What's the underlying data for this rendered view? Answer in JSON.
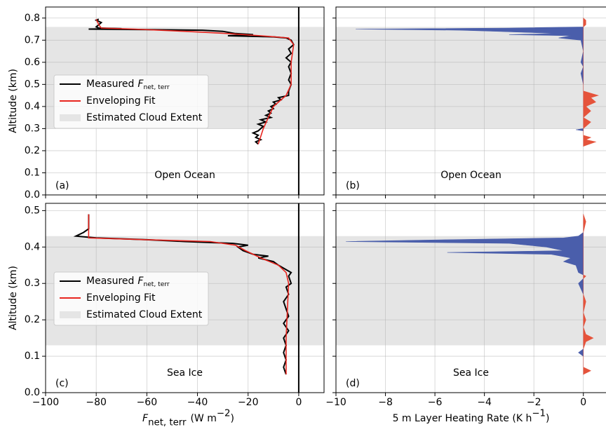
{
  "chart_data": [
    {
      "type": "line",
      "xlim": [
        -100,
        10
      ],
      "ylim": [
        0,
        0.85
      ],
      "xticks": [
        -100,
        -80,
        -60,
        -40,
        -20,
        0
      ],
      "show_xticklabels": false,
      "yticks": [
        {
          "value": 0,
          "label": "0.0"
        },
        0.1,
        0.2,
        0.3,
        0.4,
        0.5,
        0.6,
        0.7,
        0.8
      ],
      "show_yticklabels": true,
      "grid": true,
      "zero_line": true,
      "ylabel": "Altitude (km)",
      "panel_label": "(a)",
      "location_label": "Open Ocean",
      "cloud_extent": [
        0.3,
        0.76
      ],
      "cloud_color": "#e5e5e5",
      "cloud_label": "Estimated Cloud Extent",
      "legend": "center left",
      "series": [
        {
          "name": {
            "prefix": "Measured",
            "symbol": "F",
            "subscript": "net, terr"
          },
          "color": "#000000",
          "y": [
            0.23,
            0.24,
            0.25,
            0.26,
            0.27,
            0.28,
            0.29,
            0.3,
            0.31,
            0.32,
            0.33,
            0.34,
            0.35,
            0.36,
            0.37,
            0.38,
            0.39,
            0.4,
            0.41,
            0.42,
            0.43,
            0.44,
            0.45,
            0.47,
            0.5,
            0.52,
            0.55,
            0.58,
            0.6,
            0.62,
            0.64,
            0.66,
            0.68,
            0.7,
            0.71,
            0.715,
            0.72,
            0.725,
            0.73,
            0.74,
            0.745,
            0.748,
            0.75,
            0.752,
            0.755,
            0.76,
            0.77,
            0.78,
            0.79,
            0.795
          ],
          "x": [
            -16,
            -17,
            -15,
            -17,
            -16,
            -18,
            -16,
            -15,
            -14,
            -16,
            -13,
            -15,
            -11,
            -13,
            -11,
            -12,
            -10,
            -11,
            -9,
            -10,
            -7,
            -8,
            -4,
            -4,
            -3,
            -4,
            -3,
            -4,
            -3,
            -5,
            -3,
            -4,
            -2,
            -3,
            -5,
            -10,
            -28,
            -18,
            -25,
            -30,
            -38,
            -60,
            -83,
            -70,
            -79,
            -80,
            -79,
            -78,
            -80,
            -79
          ]
        },
        {
          "name": "Enveloping Fit",
          "color": "#e8251f",
          "y": [
            0.23,
            0.3,
            0.35,
            0.4,
            0.45,
            0.5,
            0.6,
            0.68,
            0.71,
            0.72,
            0.73,
            0.74,
            0.75,
            0.755,
            0.77,
            0.795
          ],
          "x": [
            -16,
            -14,
            -12,
            -10,
            -5,
            -3,
            -3,
            -2,
            -4,
            -15,
            -28,
            -45,
            -65,
            -78,
            -79,
            -80
          ]
        }
      ]
    },
    {
      "type": "area",
      "xlim": [
        -10,
        1
      ],
      "ylim": [
        0,
        0.85
      ],
      "xticks": [
        -10,
        -8,
        -6,
        -4,
        -2,
        0
      ],
      "show_xticklabels": false,
      "yticks": [
        0,
        0.1,
        0.2,
        0.3,
        0.4,
        0.5,
        0.6,
        0.7,
        0.8
      ],
      "show_yticklabels": false,
      "grid": true,
      "panel_label": "(b)",
      "location_label": "Open Ocean",
      "cloud_extent": [
        0.3,
        0.76
      ],
      "cloud_color": "#e5e5e5",
      "negative_color": "#4a5eab",
      "positive_color": "#e5533b",
      "y": [
        0.22,
        0.24,
        0.25,
        0.26,
        0.27,
        0.29,
        0.295,
        0.3,
        0.33,
        0.35,
        0.38,
        0.4,
        0.42,
        0.44,
        0.45,
        0.47,
        0.5,
        0.55,
        0.58,
        0.6,
        0.65,
        0.7,
        0.71,
        0.72,
        0.725,
        0.73,
        0.74,
        0.745,
        0.75,
        0.755,
        0.76,
        0.77,
        0.79,
        0.8
      ],
      "x": [
        0,
        0.5,
        0.1,
        0.3,
        0,
        0,
        -0.3,
        0,
        0.3,
        0,
        0.3,
        0.1,
        0.5,
        0.3,
        0.6,
        0,
        0,
        -0.1,
        0,
        -0.1,
        0,
        -0.1,
        -1,
        -0.5,
        -3,
        -1,
        -3.5,
        -5,
        -9.2,
        -3,
        0,
        0.1,
        0.1,
        0
      ]
    },
    {
      "type": "line",
      "xlim": [
        -100,
        10
      ],
      "ylim": [
        0,
        0.52
      ],
      "xticks": [
        {
          "value": -100,
          "label": "−100"
        },
        {
          "value": -80,
          "label": "−80"
        },
        {
          "value": -60,
          "label": "−60"
        },
        {
          "value": -40,
          "label": "−40"
        },
        {
          "value": -20,
          "label": "−20"
        },
        0
      ],
      "show_xticklabels": true,
      "yticks": [
        {
          "value": 0,
          "label": "0.0"
        },
        0.1,
        0.2,
        0.3,
        0.4,
        0.5
      ],
      "show_yticklabels": true,
      "grid": true,
      "zero_line": true,
      "ylabel": "Altitude (km)",
      "xlabel": {
        "symbol": "F",
        "subscript": "net, terr",
        "unit": "(W m",
        "exponent": "−2",
        "close": ")"
      },
      "panel_label": "(c)",
      "location_label": "Sea Ice",
      "cloud_extent": [
        0.13,
        0.43
      ],
      "cloud_color": "#e5e5e5",
      "cloud_label": "Estimated Cloud Extent",
      "legend": "center left",
      "series": [
        {
          "name": {
            "prefix": "Measured",
            "symbol": "F",
            "subscript": "net, terr"
          },
          "color": "#000000",
          "y": [
            0.05,
            0.07,
            0.09,
            0.11,
            0.13,
            0.15,
            0.17,
            0.19,
            0.21,
            0.23,
            0.25,
            0.27,
            0.29,
            0.3,
            0.32,
            0.33,
            0.35,
            0.36,
            0.37,
            0.375,
            0.38,
            0.39,
            0.4,
            0.405,
            0.41,
            0.415,
            0.42,
            0.425,
            0.43,
            0.44,
            0.45,
            0.47,
            0.49
          ],
          "x": [
            -5,
            -6,
            -5,
            -6,
            -5,
            -6,
            -4,
            -6,
            -4,
            -5,
            -6,
            -4,
            -5,
            -3,
            -4,
            -3,
            -8,
            -10,
            -16,
            -12,
            -18,
            -22,
            -24,
            -20,
            -26,
            -45,
            -60,
            -80,
            -88,
            -85,
            -83,
            -83,
            -83
          ]
        },
        {
          "name": "Enveloping Fit",
          "color": "#e8251f",
          "y": [
            0.05,
            0.15,
            0.3,
            0.33,
            0.35,
            0.37,
            0.39,
            0.405,
            0.415,
            0.42,
            0.425,
            0.49
          ],
          "x": [
            -5,
            -5,
            -4,
            -5,
            -8,
            -15,
            -21,
            -25,
            -35,
            -60,
            -83,
            -83
          ]
        }
      ]
    },
    {
      "type": "area",
      "xlim": [
        -10,
        1
      ],
      "ylim": [
        0,
        0.52
      ],
      "xticks": [
        {
          "value": -10,
          "label": "−10"
        },
        {
          "value": -8,
          "label": "−8"
        },
        {
          "value": -6,
          "label": "−6"
        },
        {
          "value": -4,
          "label": "−4"
        },
        {
          "value": -2,
          "label": "−2"
        },
        0
      ],
      "show_xticklabels": true,
      "yticks": [
        0,
        0.1,
        0.2,
        0.3,
        0.4,
        0.5
      ],
      "show_yticklabels": false,
      "grid": true,
      "panel_label": "(d)",
      "location_label": "Sea Ice",
      "xlabel": {
        "text": "5 m Layer Heating Rate (K h",
        "exponent": "−1",
        "close": ")"
      },
      "cloud_extent": [
        0.13,
        0.43
      ],
      "cloud_color": "#e5e5e5",
      "negative_color": "#4a5eab",
      "positive_color": "#e5533b",
      "y": [
        0.05,
        0.06,
        0.07,
        0.1,
        0.11,
        0.12,
        0.14,
        0.15,
        0.16,
        0.18,
        0.2,
        0.22,
        0.25,
        0.27,
        0.3,
        0.32,
        0.33,
        0.35,
        0.36,
        0.37,
        0.38,
        0.385,
        0.39,
        0.4,
        0.41,
        0.415,
        0.42,
        0.425,
        0.43,
        0.44,
        0.47,
        0.49
      ],
      "x": [
        0,
        0.3,
        0,
        0,
        -0.2,
        0,
        0.1,
        0.4,
        0.1,
        0,
        0.1,
        0,
        0.1,
        0,
        -0.2,
        0.1,
        -0.2,
        -0.3,
        -0.8,
        -0.5,
        -1.3,
        -5.5,
        -0.8,
        -1.5,
        -3,
        -9.6,
        -5.5,
        -0.8,
        -0.2,
        0,
        0.1,
        0
      ]
    }
  ]
}
